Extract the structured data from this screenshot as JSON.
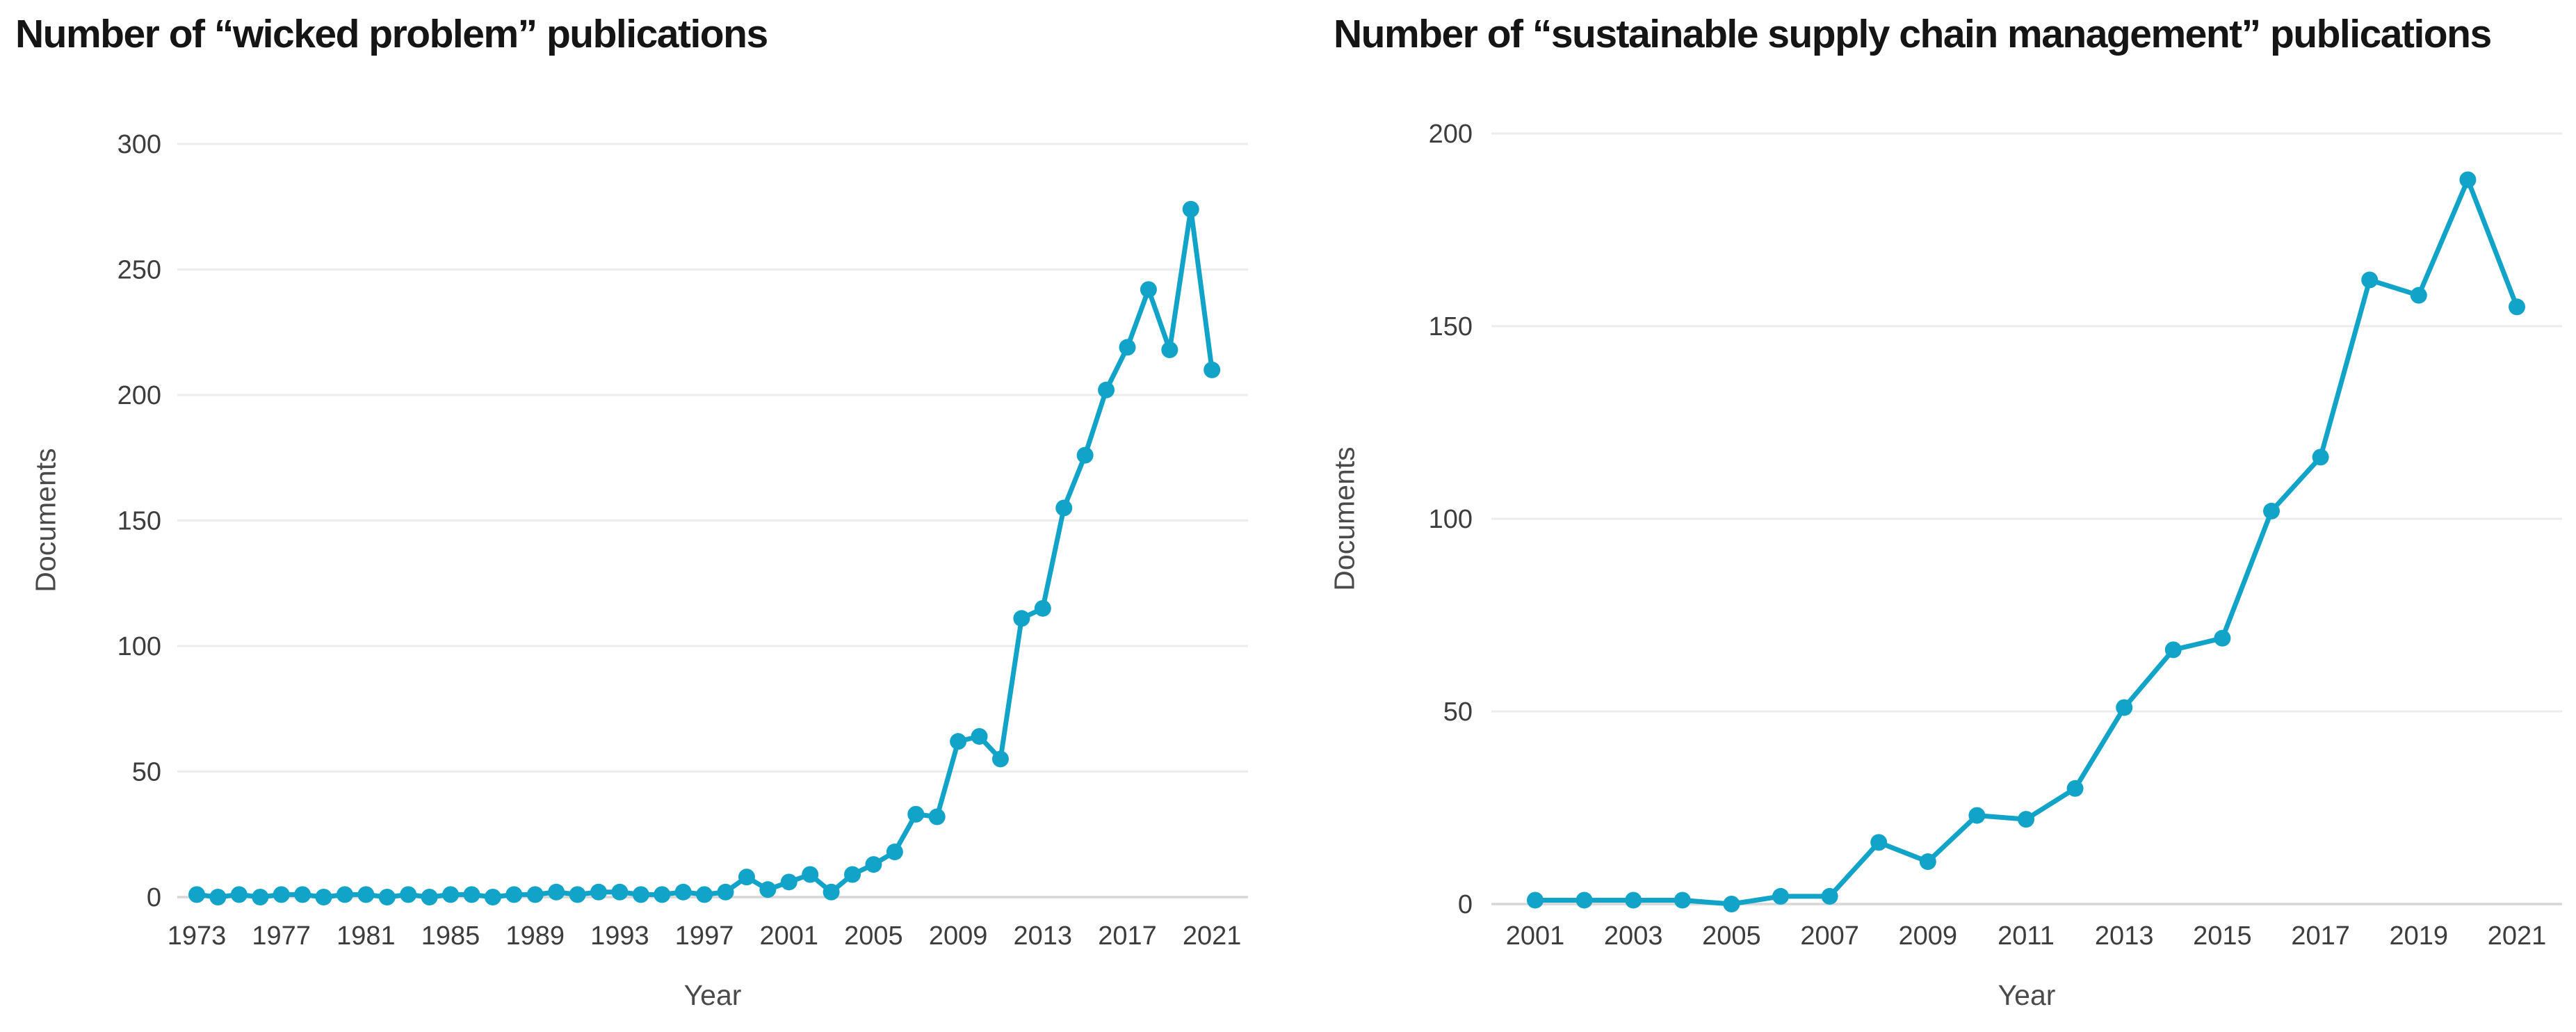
{
  "page_background": "#ffffff",
  "chart_data": [
    {
      "type": "line",
      "id": "wicked-problem",
      "title": "Number of “wicked problem” publications",
      "xlabel": "Year",
      "ylabel": "Documents",
      "series_name": "Documents",
      "x": [
        1973,
        1974,
        1975,
        1976,
        1977,
        1978,
        1979,
        1980,
        1981,
        1982,
        1983,
        1984,
        1985,
        1986,
        1987,
        1988,
        1989,
        1990,
        1991,
        1992,
        1993,
        1994,
        1995,
        1996,
        1997,
        1998,
        1999,
        2000,
        2001,
        2002,
        2003,
        2004,
        2005,
        2006,
        2007,
        2008,
        2009,
        2010,
        2011,
        2012,
        2013,
        2014,
        2015,
        2016,
        2017,
        2018,
        2019,
        2020,
        2021
      ],
      "values": [
        1,
        0,
        1,
        0,
        1,
        1,
        0,
        1,
        1,
        0,
        1,
        0,
        1,
        1,
        0,
        1,
        1,
        2,
        1,
        2,
        2,
        1,
        1,
        2,
        1,
        2,
        8,
        3,
        6,
        9,
        2,
        9,
        13,
        18,
        33,
        32,
        62,
        64,
        55,
        111,
        115,
        155,
        176,
        202,
        219,
        242,
        218,
        274,
        210
      ],
      "xticks": [
        1973,
        1977,
        1981,
        1985,
        1989,
        1993,
        1997,
        2001,
        2005,
        2009,
        2013,
        2017,
        2021
      ],
      "yticks": [
        0,
        50,
        100,
        150,
        200,
        250,
        300
      ],
      "ylim": [
        0,
        300
      ],
      "grid": "horizontal",
      "legend": "none",
      "marker": "circle",
      "line_color": "#12a3c8",
      "grid_color": "#ececec",
      "zero_line_color": "#d7d7d7",
      "tick_color": "#3d3d3d",
      "axis_label_color": "#4a4a4a"
    },
    {
      "type": "line",
      "id": "sscm",
      "title": "Number of “sustainable supply chain management” publications",
      "xlabel": "Year",
      "ylabel": "Documents",
      "series_name": "Documents",
      "x": [
        2001,
        2002,
        2003,
        2004,
        2005,
        2006,
        2007,
        2008,
        2009,
        2010,
        2011,
        2012,
        2013,
        2014,
        2015,
        2016,
        2017,
        2018,
        2019,
        2020,
        2021
      ],
      "values": [
        1,
        1,
        1,
        1,
        0,
        2,
        2,
        16,
        11,
        23,
        22,
        30,
        51,
        66,
        69,
        102,
        116,
        162,
        158,
        188,
        155
      ],
      "xticks": [
        2001,
        2003,
        2005,
        2007,
        2009,
        2011,
        2013,
        2015,
        2017,
        2019,
        2021
      ],
      "yticks": [
        0,
        50,
        100,
        150,
        200
      ],
      "ylim": [
        0,
        200
      ],
      "grid": "horizontal",
      "legend": "none",
      "marker": "circle",
      "line_color": "#12a3c8",
      "grid_color": "#ececec",
      "zero_line_color": "#d7d7d7",
      "tick_color": "#3d3d3d",
      "axis_label_color": "#4a4a4a"
    }
  ]
}
